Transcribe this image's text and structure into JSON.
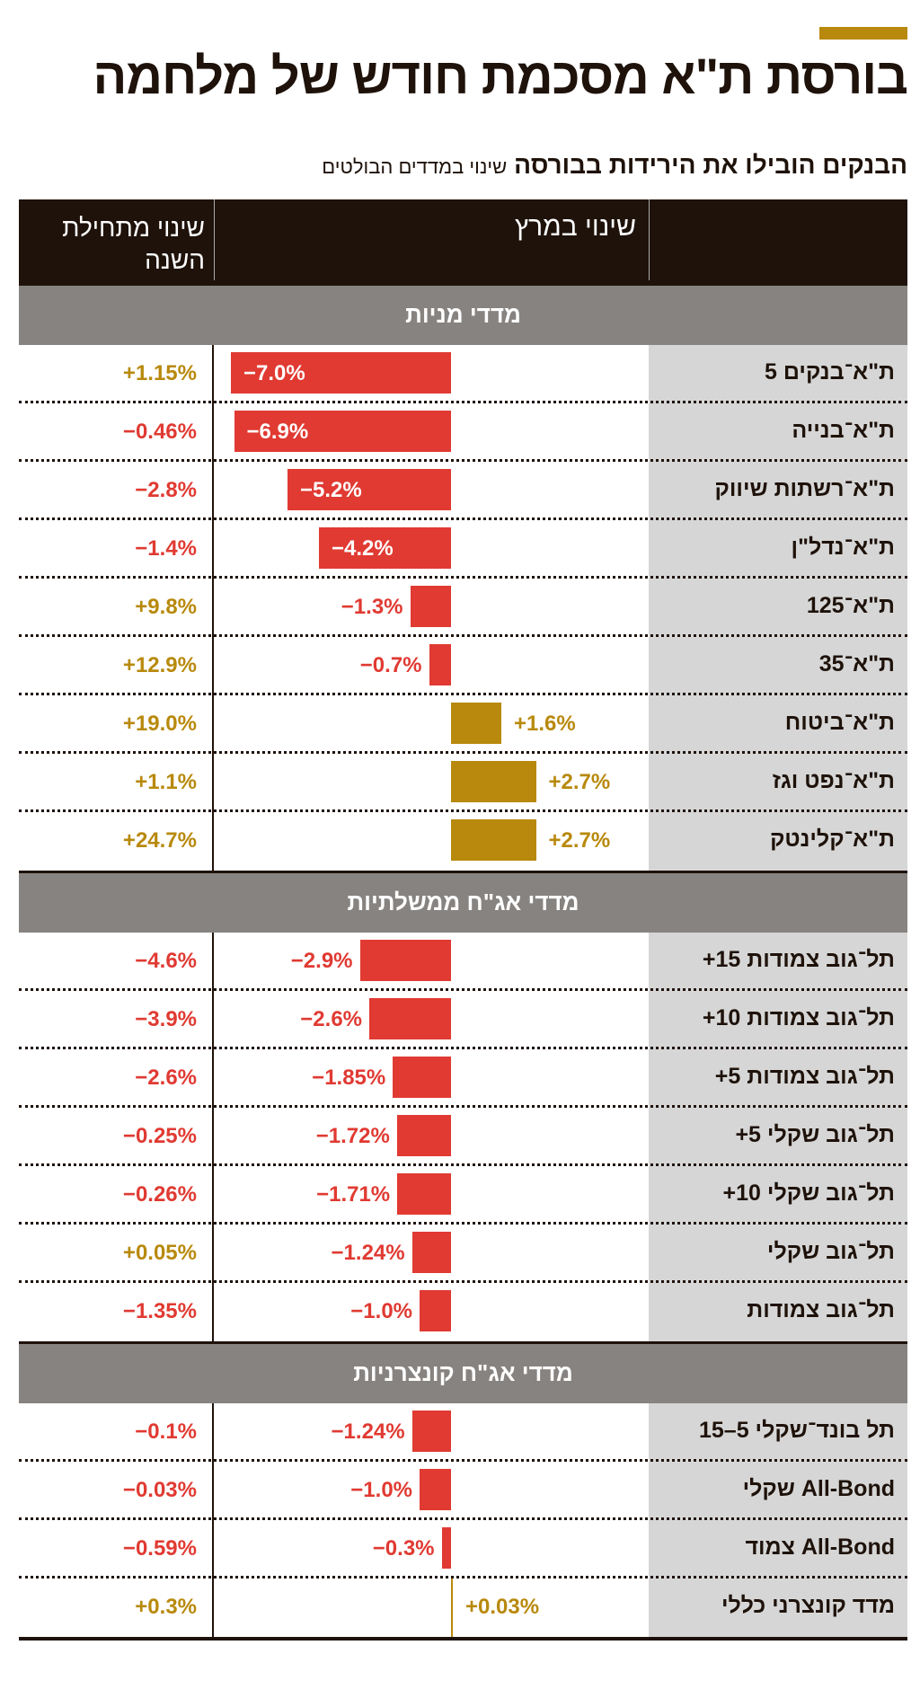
{
  "title": "בורסת ת\"א מסכמת חודש של מלחמה",
  "subtitle_bold": "הבנקים הובילו את הירידות בבורסה",
  "subtitle_note": "שינוי במדדים הבולטים",
  "colors": {
    "negative": "#e03a32",
    "positive": "#b8890c",
    "header": "#1e120a",
    "section": "#878380",
    "label_bg": "#d6d6d6"
  },
  "chart_data": {
    "type": "bar",
    "title": "בורסת ת\"א מסכמת חודש של מלחמה",
    "columns": {
      "month": "שינוי במרץ",
      "ytd": "שינוי מתחילת השנה"
    },
    "unit": "%",
    "sections": [
      {
        "name": "מדדי מניות",
        "rows": [
          {
            "label": "ת\"א־בנקים 5",
            "month": -7.0,
            "month_label": "−7.0%",
            "ytd": "+1.15%"
          },
          {
            "label": "ת\"א־בנייה",
            "month": -6.9,
            "month_label": "−6.9%",
            "ytd": "−0.46%"
          },
          {
            "label": "ת\"א־רשתות שיווק",
            "month": -5.2,
            "month_label": "−5.2%",
            "ytd": "−2.8%"
          },
          {
            "label": "ת\"א־נדל\"ן",
            "month": -4.2,
            "month_label": "−4.2%",
            "ytd": "−1.4%"
          },
          {
            "label": "ת\"א־125",
            "month": -1.3,
            "month_label": "−1.3%",
            "ytd": "+9.8%"
          },
          {
            "label": "ת\"א־35",
            "month": -0.7,
            "month_label": "−0.7%",
            "ytd": "+12.9%"
          },
          {
            "label": "ת\"א־ביטוח",
            "month": 1.6,
            "month_label": "+1.6%",
            "ytd": "+19.0%"
          },
          {
            "label": "ת\"א־נפט וגז",
            "month": 2.7,
            "month_label": "+2.7%",
            "ytd": "+1.1%"
          },
          {
            "label": "ת\"א־קלינטק",
            "month": 2.7,
            "month_label": "+2.7%",
            "ytd": "+24.7%"
          }
        ]
      },
      {
        "name": "מדדי אג\"ח ממשלתיות",
        "rows": [
          {
            "label": "תל־גוב צמודות 15+",
            "month": -2.9,
            "month_label": "−2.9%",
            "ytd": "−4.6%"
          },
          {
            "label": "תל־גוב צמודות 10+",
            "month": -2.6,
            "month_label": "−2.6%",
            "ytd": "−3.9%"
          },
          {
            "label": "תל־גוב צמודות 5+",
            "month": -1.85,
            "month_label": "−1.85%",
            "ytd": "−2.6%"
          },
          {
            "label": "תל־גוב שקלי 5+",
            "month": -1.72,
            "month_label": "−1.72%",
            "ytd": "−0.25%"
          },
          {
            "label": "תל־גוב שקלי 10+",
            "month": -1.71,
            "month_label": "−1.71%",
            "ytd": "−0.26%"
          },
          {
            "label": "תל־גוב שקלי",
            "month": -1.24,
            "month_label": "−1.24%",
            "ytd": "+0.05%"
          },
          {
            "label": "תל־גוב צמודות",
            "month": -1.0,
            "month_label": "−1.0%",
            "ytd": "−1.35%"
          }
        ]
      },
      {
        "name": "מדדי אג\"ח קונצרניות",
        "rows": [
          {
            "label": "תל בונד־שקלי 5–15",
            "month": -1.24,
            "month_label": "−1.24%",
            "ytd": "−0.1%"
          },
          {
            "label": "All-Bond שקלי",
            "month": -1.0,
            "month_label": "−1.0%",
            "ytd": "−0.03%"
          },
          {
            "label": "All-Bond צמוד",
            "month": -0.3,
            "month_label": "−0.3%",
            "ytd": "−0.59%"
          },
          {
            "label": "מדד קונצרני כללי",
            "month": 0.03,
            "month_label": "+0.03%",
            "ytd": "+0.3%"
          }
        ]
      }
    ]
  }
}
